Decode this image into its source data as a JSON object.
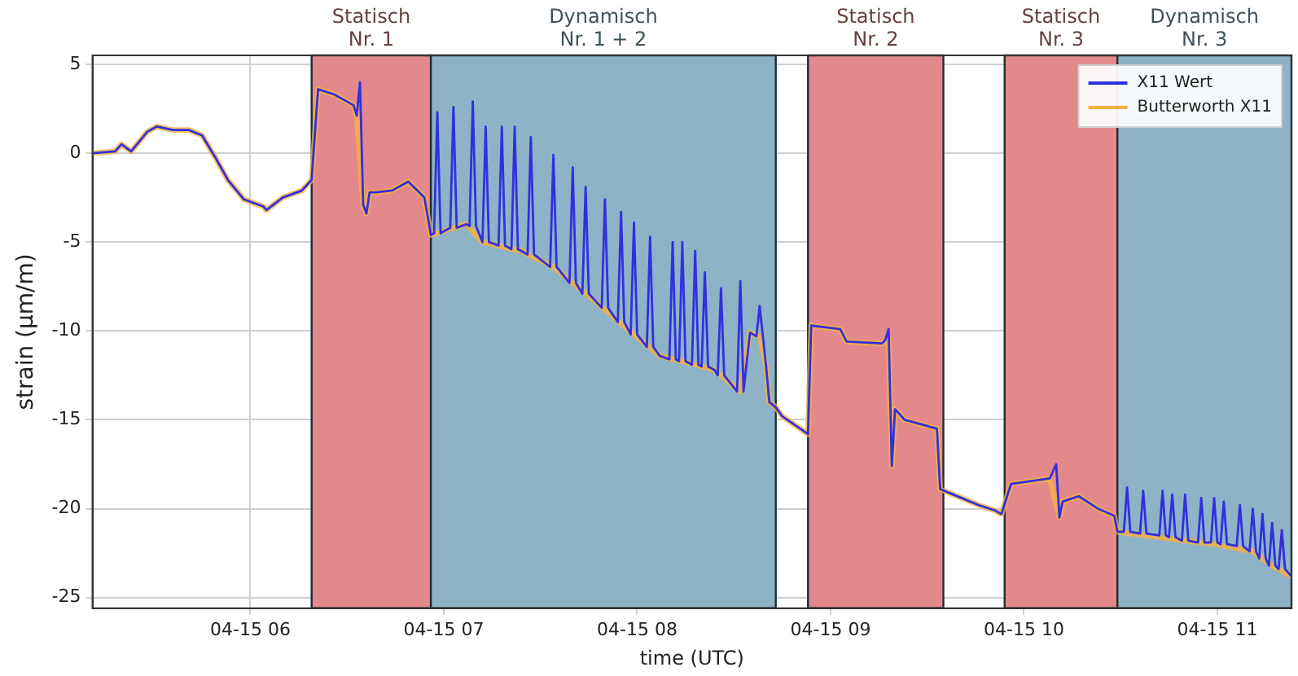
{
  "chart_data": {
    "type": "line",
    "xlabel": "time (UTC)",
    "ylabel": "strain (µm/m)",
    "legend": "top right",
    "grid": true,
    "marker": "none",
    "line_style": "solid",
    "xlim": [
      "--04-15T05:11",
      "--04-15T11:23"
    ],
    "ylim": [
      -25.6,
      5.5
    ],
    "xticks": [
      {
        "value": "--04-15T06:00",
        "label": "04-15 06"
      },
      {
        "value": "--04-15T07:00",
        "label": "04-15 07"
      },
      {
        "value": "--04-15T08:00",
        "label": "04-15 08"
      },
      {
        "value": "--04-15T09:00",
        "label": "04-15 09"
      },
      {
        "value": "--04-15T10:00",
        "label": "04-15 10"
      },
      {
        "value": "--04-15T11:00",
        "label": "04-15 11"
      }
    ],
    "yticks": [
      -25,
      -20,
      -15,
      -10,
      -5,
      0,
      5
    ],
    "bands": [
      {
        "axis": "x",
        "from": "--04-15T06:19",
        "to": "--04-15T06:56",
        "label": "Statisch\nNr. 1",
        "color": "#e4898b"
      },
      {
        "axis": "x",
        "from": "--04-15T06:56",
        "to": "--04-15T08:43",
        "label": "Dynamisch\nNr. 1 + 2",
        "color": "#8fb3c6"
      },
      {
        "axis": "x",
        "from": "--04-15T08:53",
        "to": "--04-15T09:35",
        "label": "Statisch\nNr. 2",
        "color": "#e4898b"
      },
      {
        "axis": "x",
        "from": "--04-15T09:54",
        "to": "--04-15T10:29",
        "label": "Statisch\nNr. 3",
        "color": "#e4898b"
      },
      {
        "axis": "x",
        "from": "--04-15T10:29",
        "to": "--04-15T11:23",
        "label": "Dynamisch\nNr. 3",
        "color": "#8fb3c6"
      }
    ],
    "series": [
      {
        "name": "X11 Wert",
        "color": "#3030e0",
        "x": [
          "--04-15T05:11",
          "--04-15T05:18",
          "--04-15T05:20",
          "--04-15T05:23",
          "--04-15T05:28",
          "--04-15T05:31",
          "--04-15T05:36",
          "--04-15T05:41",
          "--04-15T05:45",
          "--04-15T05:49",
          "--04-15T05:53",
          "--04-15T05:58",
          "--04-15T06:04",
          "--04-15T06:05",
          "--04-15T06:10",
          "--04-15T06:16",
          "--04-15T06:19",
          "--04-15T06:21",
          "--04-15T06:26",
          "--04-15T06:32",
          "--04-15T06:33",
          "--04-15T06:34",
          "--04-15T06:35",
          "--04-15T06:36",
          "--04-15T06:37",
          "--04-15T06:39",
          "--04-15T06:44",
          "--04-15T06:49",
          "--04-15T06:54",
          "--04-15T06:56",
          "--04-15T06:57",
          "--04-15T06:58",
          "--04-15T06:59",
          "--04-15T07:02",
          "--04-15T07:03",
          "--04-15T07:04",
          "--04-15T07:07",
          "--04-15T07:08",
          "--04-15T07:09",
          "--04-15T07:10",
          "--04-15T07:12",
          "--04-15T07:13",
          "--04-15T07:14",
          "--04-15T07:17",
          "--04-15T07:18",
          "--04-15T07:19",
          "--04-15T07:21",
          "--04-15T07:22",
          "--04-15T07:23",
          "--04-15T07:24",
          "--04-15T07:26",
          "--04-15T07:27",
          "--04-15T07:28",
          "--04-15T07:33",
          "--04-15T07:34",
          "--04-15T07:35",
          "--04-15T07:39",
          "--04-15T07:40",
          "--04-15T07:41",
          "--04-15T07:42",
          "--04-15T07:43",
          "--04-15T07:44",
          "--04-15T07:45",
          "--04-15T07:49",
          "--04-15T07:50",
          "--04-15T07:51",
          "--04-15T07:54",
          "--04-15T07:55",
          "--04-15T07:56",
          "--04-15T07:58",
          "--04-15T07:59",
          "--04-15T08:00",
          "--04-15T08:03",
          "--04-15T08:04",
          "--04-15T08:05",
          "--04-15T08:07",
          "--04-15T08:10",
          "--04-15T08:11",
          "--04-15T08:12",
          "--04-15T08:13",
          "--04-15T08:14",
          "--04-15T08:15",
          "--04-15T08:16",
          "--04-15T08:17",
          "--04-15T08:18",
          "--04-15T08:19",
          "--04-15T08:20",
          "--04-15T08:21",
          "--04-15T08:22",
          "--04-15T08:24",
          "--04-15T08:25",
          "--04-15T08:26",
          "--04-15T08:27",
          "--04-15T08:31",
          "--04-15T08:32",
          "--04-15T08:33",
          "--04-15T08:35",
          "--04-15T08:37",
          "--04-15T08:38",
          "--04-15T08:39",
          "--04-15T08:40",
          "--04-15T08:41",
          "--04-15T08:43",
          "--04-15T08:45",
          "--04-15T08:53",
          "--04-15T08:54",
          "--04-15T09:03",
          "--04-15T09:05",
          "--04-15T09:16",
          "--04-15T09:17",
          "--04-15T09:18",
          "--04-15T09:19",
          "--04-15T09:20",
          "--04-15T09:23",
          "--04-15T09:31",
          "--04-15T09:33",
          "--04-15T09:34",
          "--04-15T09:38",
          "--04-15T09:46",
          "--04-15T09:51",
          "--04-15T09:53",
          "--04-15T09:56",
          "--04-15T10:04",
          "--04-15T10:08",
          "--04-15T10:10",
          "--04-15T10:11",
          "--04-15T10:12",
          "--04-15T10:17",
          "--04-15T10:23",
          "--04-15T10:28",
          "--04-15T10:29",
          "--04-15T10:31",
          "--04-15T10:32",
          "--04-15T10:33",
          "--04-15T10:36",
          "--04-15T10:37",
          "--04-15T10:38",
          "--04-15T10:42",
          "--04-15T10:43",
          "--04-15T10:44",
          "--04-15T10:45",
          "--04-15T10:46",
          "--04-15T10:47",
          "--04-15T10:49",
          "--04-15T10:50",
          "--04-15T10:51",
          "--04-15T10:54",
          "--04-15T10:55",
          "--04-15T10:56",
          "--04-15T10:58",
          "--04-15T10:59",
          "--04-15T11:00",
          "--04-15T11:01",
          "--04-15T11:02",
          "--04-15T11:03",
          "--04-15T11:06",
          "--04-15T11:07",
          "--04-15T11:08",
          "--04-15T11:10",
          "--04-15T11:11",
          "--04-15T11:12",
          "--04-15T11:13",
          "--04-15T11:14",
          "--04-15T11:15",
          "--04-15T11:16",
          "--04-15T11:17",
          "--04-15T11:18",
          "--04-15T11:19",
          "--04-15T11:20",
          "--04-15T11:21",
          "--04-15T11:23"
        ],
        "values": [
          0.0,
          0.1,
          0.5,
          0.1,
          1.2,
          1.5,
          1.3,
          1.3,
          1.0,
          -0.2,
          -1.5,
          -2.6,
          -3.0,
          -3.2,
          -2.5,
          -2.1,
          -1.5,
          3.6,
          3.3,
          2.7,
          2.1,
          4.0,
          -2.9,
          -3.4,
          -2.2,
          -2.2,
          -2.1,
          -1.6,
          -2.5,
          -4.6,
          -4.5,
          2.3,
          -4.5,
          -4.2,
          2.6,
          -4.2,
          -4.0,
          -4.1,
          2.9,
          -4.1,
          -5.0,
          1.5,
          -5.0,
          -5.2,
          1.5,
          -5.2,
          -5.4,
          1.5,
          -5.4,
          -5.5,
          -5.7,
          0.9,
          -5.7,
          -6.4,
          -0.1,
          -6.4,
          -7.3,
          -0.8,
          -7.3,
          -7.6,
          -7.9,
          -1.9,
          -7.9,
          -8.7,
          -2.6,
          -8.7,
          -9.5,
          -3.3,
          -9.5,
          -10.2,
          -3.9,
          -10.2,
          -10.9,
          -4.7,
          -10.9,
          -11.4,
          -11.6,
          -5.0,
          -11.6,
          -11.7,
          -5.0,
          -11.7,
          -11.8,
          -11.9,
          -5.5,
          -11.9,
          -12.0,
          -6.7,
          -12.0,
          -12.2,
          -12.5,
          -7.6,
          -12.5,
          -13.4,
          -7.2,
          -13.4,
          -10.1,
          -10.3,
          -8.6,
          -10.3,
          -12.0,
          -14.0,
          -14.3,
          -14.8,
          -15.8,
          -9.7,
          -9.9,
          -10.6,
          -10.7,
          -10.5,
          -9.9,
          -17.6,
          -14.4,
          -15.0,
          -15.4,
          -15.5,
          -18.9,
          -19.2,
          -19.8,
          -20.1,
          -20.3,
          -18.6,
          -18.4,
          -18.3,
          -17.5,
          -20.5,
          -19.6,
          -19.3,
          -20.0,
          -20.4,
          -21.3,
          -21.3,
          -18.8,
          -21.3,
          -21.4,
          -19.0,
          -21.4,
          -21.5,
          -19.0,
          -21.5,
          -21.6,
          -19.2,
          -21.6,
          -21.8,
          -19.2,
          -21.8,
          -21.9,
          -19.4,
          -21.9,
          -21.9,
          -19.4,
          -21.9,
          -22.0,
          -19.6,
          -22.0,
          -22.1,
          -19.8,
          -22.1,
          -22.4,
          -20.0,
          -22.4,
          -22.8,
          -20.3,
          -22.8,
          -23.2,
          -20.8,
          -23.2,
          -23.4,
          -21.2,
          -23.4,
          -23.8
        ]
      },
      {
        "name": "Butterworth X11",
        "color": "#f5b041",
        "x": [
          "--04-15T05:11",
          "--04-15T05:18",
          "--04-15T05:20",
          "--04-15T05:23",
          "--04-15T05:28",
          "--04-15T05:31",
          "--04-15T05:36",
          "--04-15T05:41",
          "--04-15T05:45",
          "--04-15T05:49",
          "--04-15T05:53",
          "--04-15T05:58",
          "--04-15T06:04",
          "--04-15T06:05",
          "--04-15T06:10",
          "--04-15T06:16",
          "--04-15T06:19",
          "--04-15T06:21",
          "--04-15T06:26",
          "--04-15T06:32",
          "--04-15T06:33",
          "--04-15T06:35",
          "--04-15T06:36",
          "--04-15T06:37",
          "--04-15T06:39",
          "--04-15T06:44",
          "--04-15T06:49",
          "--04-15T06:54",
          "--04-15T06:56",
          "--04-15T07:07",
          "--04-15T07:12",
          "--04-15T07:24",
          "--04-15T07:34",
          "--04-15T07:42",
          "--04-15T07:50",
          "--04-15T07:59",
          "--04-15T08:07",
          "--04-15T08:16",
          "--04-15T08:24",
          "--04-15T08:32",
          "--04-15T08:35",
          "--04-15T08:38",
          "--04-15T08:40",
          "--04-15T08:41",
          "--04-15T08:43",
          "--04-15T08:45",
          "--04-15T08:53",
          "--04-15T08:54",
          "--04-15T09:03",
          "--04-15T09:05",
          "--04-15T09:16",
          "--04-15T09:18",
          "--04-15T09:19",
          "--04-15T09:20",
          "--04-15T09:23",
          "--04-15T09:31",
          "--04-15T09:33",
          "--04-15T09:34",
          "--04-15T09:38",
          "--04-15T09:46",
          "--04-15T09:51",
          "--04-15T09:53",
          "--04-15T09:56",
          "--04-15T10:04",
          "--04-15T10:08",
          "--04-15T10:11",
          "--04-15T10:12",
          "--04-15T10:17",
          "--04-15T10:23",
          "--04-15T10:28",
          "--04-15T10:29",
          "--04-15T10:50",
          "--04-15T10:59",
          "--04-15T11:11",
          "--04-15T11:17",
          "--04-15T11:23"
        ],
        "values": [
          0.0,
          0.1,
          0.5,
          0.1,
          1.2,
          1.5,
          1.3,
          1.3,
          1.0,
          -0.2,
          -1.5,
          -2.6,
          -3.0,
          -3.2,
          -2.5,
          -2.1,
          -1.5,
          3.6,
          3.3,
          2.7,
          2.1,
          -2.9,
          -3.4,
          -2.2,
          -2.2,
          -2.1,
          -1.6,
          -2.5,
          -4.6,
          -4.0,
          -5.0,
          -5.5,
          -6.4,
          -7.6,
          -8.8,
          -10.2,
          -11.4,
          -11.8,
          -12.2,
          -13.4,
          -10.1,
          -10.3,
          -12.0,
          -14.0,
          -14.3,
          -14.8,
          -15.8,
          -9.7,
          -9.9,
          -10.6,
          -10.7,
          -10.5,
          -17.6,
          -14.4,
          -15.0,
          -15.4,
          -15.5,
          -18.9,
          -19.2,
          -19.8,
          -20.1,
          -20.3,
          -18.6,
          -18.4,
          -18.3,
          -20.5,
          -19.6,
          -19.3,
          -20.0,
          -20.4,
          -21.3,
          -21.8,
          -22.0,
          -22.4,
          -23.2,
          -23.8
        ]
      }
    ]
  }
}
